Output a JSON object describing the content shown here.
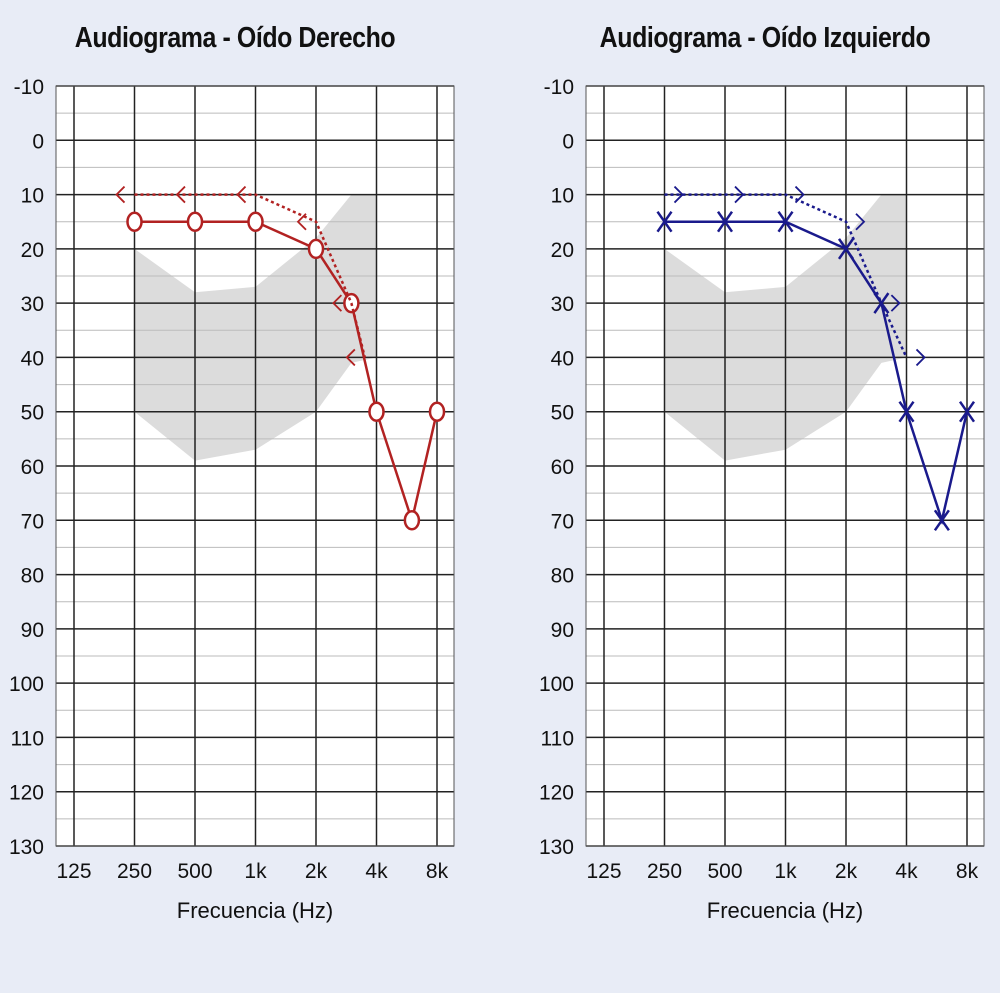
{
  "chart_data": [
    {
      "type": "line",
      "title": "Audiograma - Oído Derecho",
      "xlabel": "Frecuencia (Hz)",
      "ylabel": "",
      "x_ticks": [
        "125",
        "250",
        "500",
        "1k",
        "2k",
        "4k",
        "8k"
      ],
      "y_ticks": [
        -10,
        0,
        10,
        20,
        30,
        40,
        50,
        60,
        70,
        80,
        90,
        100,
        110,
        120,
        130
      ],
      "ylim": [
        -10,
        130
      ],
      "y_inverted": true,
      "x_scale": "log",
      "grid": true,
      "color": "#b22222",
      "series": [
        {
          "marker": "circle",
          "line_style": "solid",
          "points": [
            {
              "x": 250,
              "y": 15
            },
            {
              "x": 500,
              "y": 15
            },
            {
              "x": 1000,
              "y": 15
            },
            {
              "x": 2000,
              "y": 20
            },
            {
              "x": 3000,
              "y": 30
            },
            {
              "x": 4000,
              "y": 50
            },
            {
              "x": 6000,
              "y": 70
            },
            {
              "x": 8000,
              "y": 50
            }
          ]
        },
        {
          "marker": "<",
          "line_style": "dotted",
          "points": [
            {
              "x": 250,
              "y": 10
            },
            {
              "x": 500,
              "y": 10
            },
            {
              "x": 1000,
              "y": 10
            },
            {
              "x": 2000,
              "y": 15
            },
            {
              "x": 3000,
              "y": 30
            },
            {
              "x": 3500,
              "y": 40
            }
          ]
        }
      ],
      "normal_range_band": {
        "color": "#dcdcdc",
        "upper": [
          {
            "x": 250,
            "y": 20
          },
          {
            "x": 500,
            "y": 28
          },
          {
            "x": 1000,
            "y": 27
          },
          {
            "x": 2000,
            "y": 18
          },
          {
            "x": 3000,
            "y": 10
          },
          {
            "x": 4000,
            "y": 10
          }
        ],
        "lower": [
          {
            "x": 250,
            "y": 50
          },
          {
            "x": 500,
            "y": 59
          },
          {
            "x": 1000,
            "y": 57
          },
          {
            "x": 2000,
            "y": 50
          },
          {
            "x": 3000,
            "y": 41
          },
          {
            "x": 4000,
            "y": 40
          }
        ]
      }
    },
    {
      "type": "line",
      "title": "Audiograma - Oído Izquierdo",
      "xlabel": "Frecuencia (Hz)",
      "ylabel": "",
      "x_ticks": [
        "125",
        "250",
        "500",
        "1k",
        "2k",
        "4k",
        "8k"
      ],
      "y_ticks": [
        -10,
        0,
        10,
        20,
        30,
        40,
        50,
        60,
        70,
        80,
        90,
        100,
        110,
        120,
        130
      ],
      "ylim": [
        -10,
        130
      ],
      "y_inverted": true,
      "x_scale": "log",
      "grid": true,
      "color": "#1a1a8c",
      "series": [
        {
          "marker": "x",
          "line_style": "solid",
          "points": [
            {
              "x": 250,
              "y": 15
            },
            {
              "x": 500,
              "y": 15
            },
            {
              "x": 1000,
              "y": 15
            },
            {
              "x": 2000,
              "y": 20
            },
            {
              "x": 3000,
              "y": 30
            },
            {
              "x": 4000,
              "y": 50
            },
            {
              "x": 6000,
              "y": 70
            },
            {
              "x": 8000,
              "y": 50
            }
          ]
        },
        {
          "marker": ">",
          "line_style": "dotted",
          "points": [
            {
              "x": 250,
              "y": 10
            },
            {
              "x": 500,
              "y": 10
            },
            {
              "x": 1000,
              "y": 10
            },
            {
              "x": 2000,
              "y": 15
            },
            {
              "x": 3000,
              "y": 30
            },
            {
              "x": 4000,
              "y": 40
            }
          ]
        }
      ],
      "normal_range_band": {
        "color": "#dcdcdc",
        "upper": [
          {
            "x": 250,
            "y": 20
          },
          {
            "x": 500,
            "y": 28
          },
          {
            "x": 1000,
            "y": 27
          },
          {
            "x": 2000,
            "y": 18
          },
          {
            "x": 3000,
            "y": 10
          },
          {
            "x": 4000,
            "y": 10
          }
        ],
        "lower": [
          {
            "x": 250,
            "y": 50
          },
          {
            "x": 500,
            "y": 59
          },
          {
            "x": 1000,
            "y": 57
          },
          {
            "x": 2000,
            "y": 50
          },
          {
            "x": 3000,
            "y": 41
          },
          {
            "x": 4000,
            "y": 40
          }
        ]
      }
    }
  ]
}
